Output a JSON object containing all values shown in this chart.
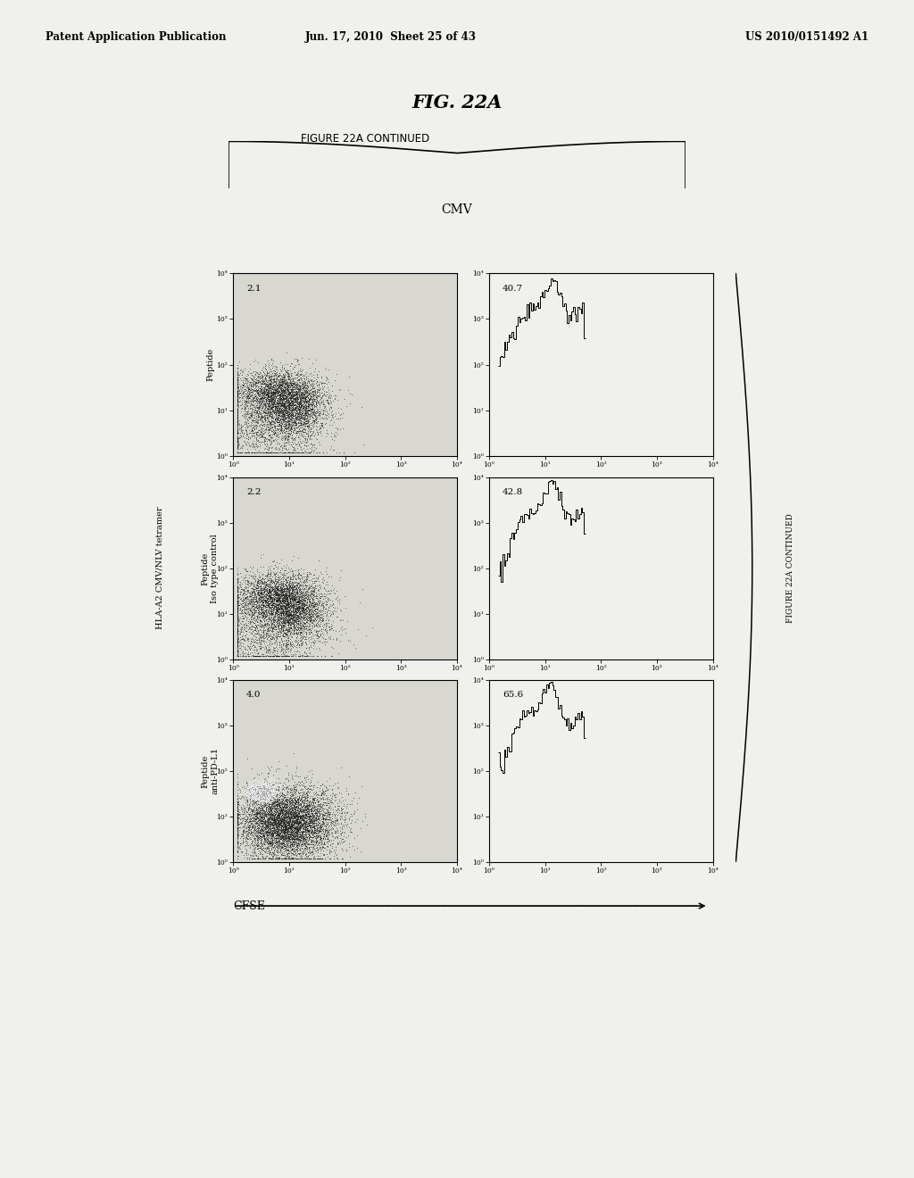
{
  "bg_color": "#f0f0ec",
  "paper_color": "#ffffff",
  "header_left": "Patent Application Publication",
  "header_center": "Jun. 17, 2010  Sheet 25 of 43",
  "header_right": "US 2010/0151492 A1",
  "fig_title": "FIG. 22A",
  "subtitle": "FIGURE 22A CONTINUED",
  "cmv_label": "CMV",
  "row_labels_left": [
    "Peptide",
    "Peptide\nIso type control",
    "Peptide\nanti-PD-L1"
  ],
  "ylabel_main": "HLA-A2 CMV/NLV tetramer",
  "left_col_numbers": [
    "2.1",
    "2.2",
    "4.0"
  ],
  "right_col_numbers": [
    "40.7",
    "42.8",
    "65.6"
  ],
  "xlabel_bottom": "CFSE",
  "side_label": "FIGURE 22A CONTINUED",
  "plot_bg": "#d8d8d0",
  "hist_bg": "#f0f0ec"
}
